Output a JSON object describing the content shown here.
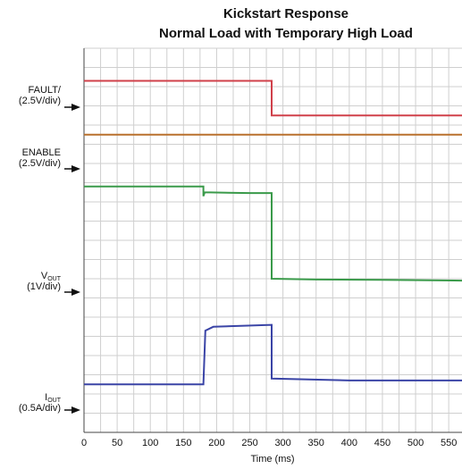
{
  "chart_data": {
    "type": "line",
    "title": "Kickstart Response",
    "subtitle": "Normal Load with Temporary High Load",
    "xlabel": "Time (ms)",
    "xlim": [
      0,
      570
    ],
    "xticks": [
      "0",
      "50",
      "100",
      "150",
      "200",
      "250",
      "300",
      "350",
      "400",
      "450",
      "500",
      "550"
    ],
    "grid": true,
    "traces": [
      {
        "label": "FAULT/",
        "label_sub": "",
        "scale": "(2.5V/div)",
        "color": "#d0404a",
        "points": [
          [
            0,
            0.85
          ],
          [
            283,
            0.85
          ],
          [
            283,
            1.75
          ],
          [
            570,
            1.75
          ]
        ]
      },
      {
        "label": "ENABLE",
        "label_sub": "",
        "scale": "(2.5V/div)",
        "color": "#b9702d",
        "points": [
          [
            0,
            2.25
          ],
          [
            570,
            2.25
          ]
        ]
      },
      {
        "label": "V",
        "label_sub": "OUT",
        "scale": "(1V/div)",
        "color": "#3a9a4a",
        "points": [
          [
            0,
            3.6
          ],
          [
            180,
            3.6
          ],
          [
            180,
            3.85
          ],
          [
            182,
            3.75
          ],
          [
            250,
            3.77
          ],
          [
            283,
            3.77
          ],
          [
            283,
            6.0
          ],
          [
            350,
            6.02
          ],
          [
            450,
            6.03
          ],
          [
            570,
            6.05
          ]
        ]
      },
      {
        "label": "I",
        "label_sub": "OUT",
        "scale": "(0.5A/div)",
        "color": "#3a44a6",
        "points": [
          [
            0,
            8.75
          ],
          [
            180,
            8.75
          ],
          [
            183,
            7.35
          ],
          [
            195,
            7.25
          ],
          [
            283,
            7.2
          ],
          [
            283,
            8.6
          ],
          [
            400,
            8.65
          ],
          [
            570,
            8.65
          ]
        ]
      }
    ]
  }
}
